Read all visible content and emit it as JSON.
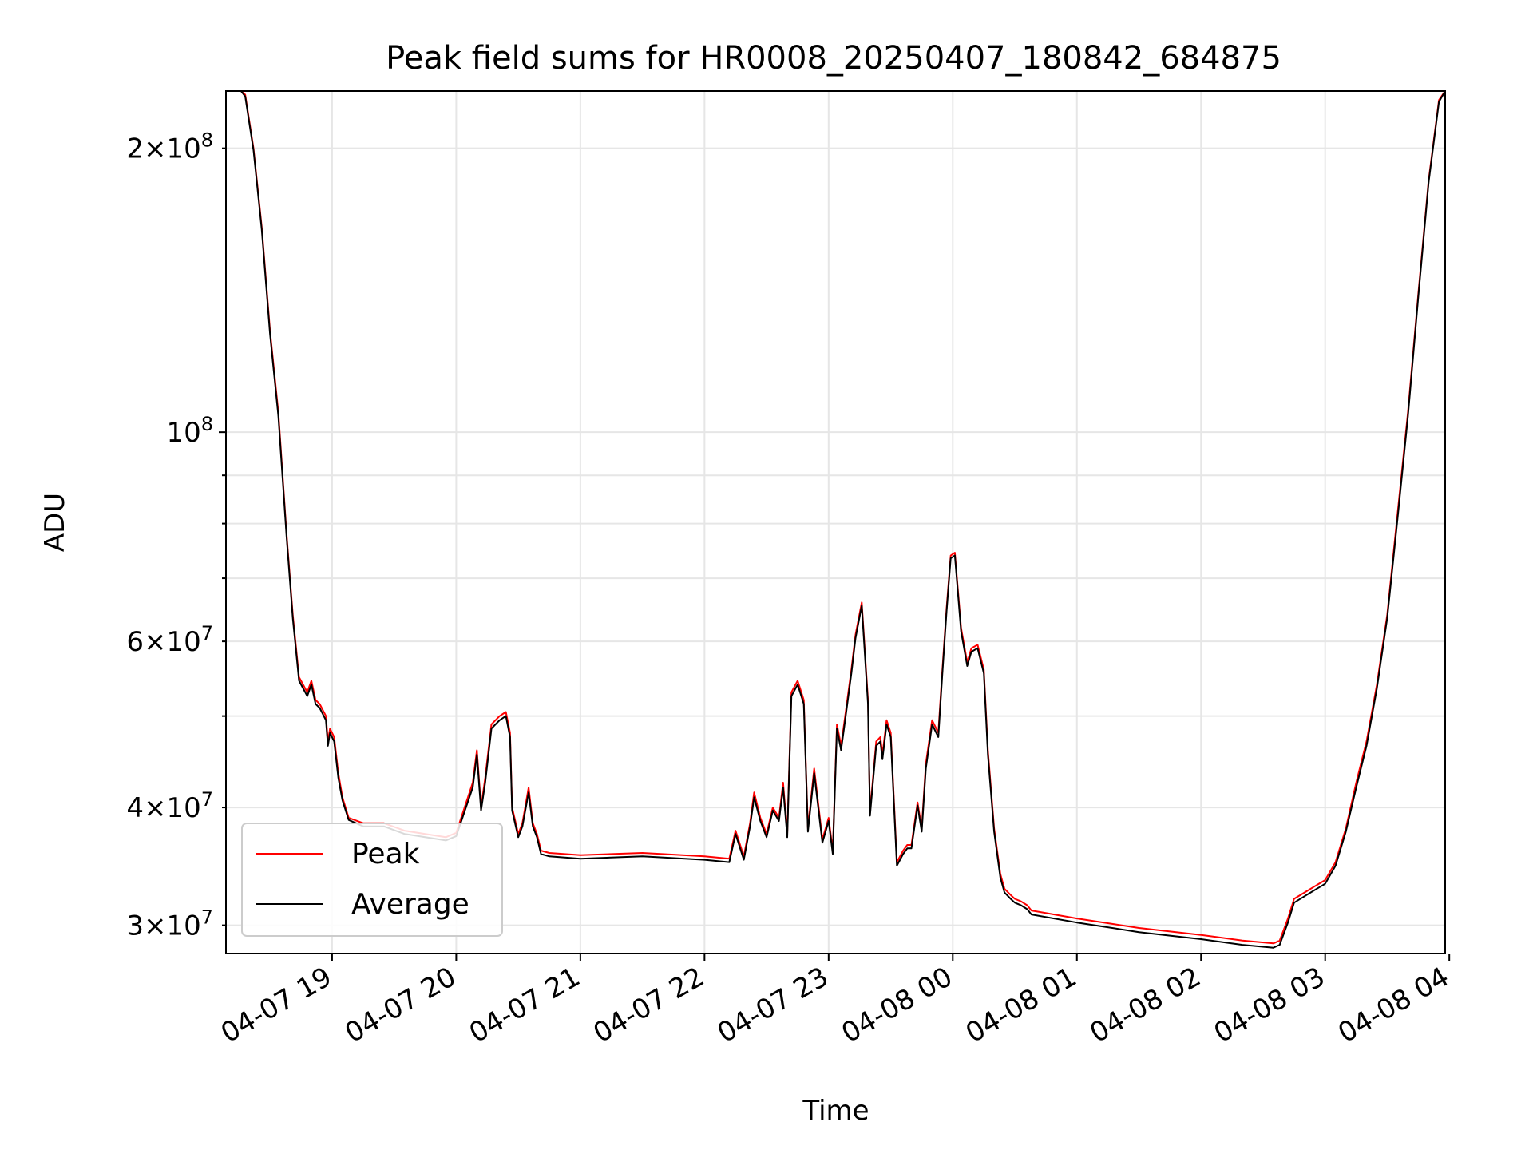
{
  "chart_data": {
    "type": "line",
    "title": "Peak field sums for HR0008_20250407_180842_684875",
    "xlabel": "Time",
    "ylabel": "ADU",
    "y_scale": "log",
    "ylim": [
      28000000,
      230000000
    ],
    "xlim": [
      "2025-04-07 18:08:42",
      "2025-04-08 03:58:00"
    ],
    "grid": true,
    "legend_position": "lower-left",
    "x_ticks": [
      {
        "time": "2025-04-07 19:00",
        "label": "04-07 19"
      },
      {
        "time": "2025-04-07 20:00",
        "label": "04-07 20"
      },
      {
        "time": "2025-04-07 21:00",
        "label": "04-07 21"
      },
      {
        "time": "2025-04-07 22:00",
        "label": "04-07 22"
      },
      {
        "time": "2025-04-07 23:00",
        "label": "04-07 23"
      },
      {
        "time": "2025-04-08 00:00",
        "label": "04-08 00"
      },
      {
        "time": "2025-04-08 01:00",
        "label": "04-08 01"
      },
      {
        "time": "2025-04-08 02:00",
        "label": "04-08 02"
      },
      {
        "time": "2025-04-08 03:00",
        "label": "04-08 03"
      },
      {
        "time": "2025-04-08 04:00",
        "label": "04-08 04"
      }
    ],
    "y_major_ticks": [
      {
        "value": 100000000,
        "base": "10",
        "exp": "8"
      }
    ],
    "y_minor_labeled_ticks": [
      {
        "value": 30000000,
        "mant": "3",
        "base": "10",
        "exp": "7"
      },
      {
        "value": 40000000,
        "mant": "4",
        "base": "10",
        "exp": "7"
      },
      {
        "value": 60000000,
        "mant": "6",
        "base": "10",
        "exp": "7"
      },
      {
        "value": 200000000,
        "mant": "2",
        "base": "10",
        "exp": "8"
      }
    ],
    "y_minor_ticks": [
      50000000,
      70000000,
      80000000,
      90000000
    ],
    "series": [
      {
        "name": "Peak",
        "color": "#ff0000",
        "x": [
          "2025-04-07 18:08:42",
          "2025-04-07 18:16",
          "2025-04-07 18:18",
          "2025-04-07 18:22",
          "2025-04-07 18:26",
          "2025-04-07 18:30",
          "2025-04-07 18:34",
          "2025-04-07 18:38",
          "2025-04-07 18:41",
          "2025-04-07 18:44",
          "2025-04-07 18:48",
          "2025-04-07 18:50",
          "2025-04-07 18:52",
          "2025-04-07 18:54",
          "2025-04-07 18:57",
          "2025-04-07 18:58",
          "2025-04-07 18:59",
          "2025-04-07 19:01",
          "2025-04-07 19:03",
          "2025-04-07 19:05",
          "2025-04-07 19:08",
          "2025-04-07 19:15",
          "2025-04-07 19:25",
          "2025-04-07 19:35",
          "2025-04-07 19:45",
          "2025-04-07 19:55",
          "2025-04-07 20:00",
          "2025-04-07 20:08",
          "2025-04-07 20:10",
          "2025-04-07 20:12",
          "2025-04-07 20:14",
          "2025-04-07 20:17",
          "2025-04-07 20:19",
          "2025-04-07 20:21",
          "2025-04-07 20:24",
          "2025-04-07 20:26",
          "2025-04-07 20:27",
          "2025-04-07 20:30",
          "2025-04-07 20:32",
          "2025-04-07 20:35",
          "2025-04-07 20:37",
          "2025-04-07 20:39",
          "2025-04-07 20:41",
          "2025-04-07 20:45",
          "2025-04-07 21:00",
          "2025-04-07 21:30",
          "2025-04-07 22:00",
          "2025-04-07 22:12",
          "2025-04-07 22:15",
          "2025-04-07 22:19",
          "2025-04-07 22:22",
          "2025-04-07 22:24",
          "2025-04-07 22:27",
          "2025-04-07 22:30",
          "2025-04-07 22:33",
          "2025-04-07 22:36",
          "2025-04-07 22:38",
          "2025-04-07 22:40",
          "2025-04-07 22:42",
          "2025-04-07 22:45",
          "2025-04-07 22:48",
          "2025-04-07 22:50",
          "2025-04-07 22:53",
          "2025-04-07 22:57",
          "2025-04-07 23:00",
          "2025-04-07 23:02",
          "2025-04-07 23:04",
          "2025-04-07 23:06",
          "2025-04-07 23:08",
          "2025-04-07 23:11",
          "2025-04-07 23:13",
          "2025-04-07 23:16",
          "2025-04-07 23:19",
          "2025-04-07 23:20",
          "2025-04-07 23:23",
          "2025-04-07 23:25",
          "2025-04-07 23:26",
          "2025-04-07 23:28",
          "2025-04-07 23:30",
          "2025-04-07 23:33",
          "2025-04-07 23:36",
          "2025-04-07 23:38",
          "2025-04-07 23:40",
          "2025-04-07 23:43",
          "2025-04-07 23:45",
          "2025-04-07 23:47",
          "2025-04-07 23:50",
          "2025-04-07 23:53",
          "2025-04-07 23:55",
          "2025-04-07 23:57",
          "2025-04-07 23:59",
          "2025-04-08 00:01",
          "2025-04-08 00:04",
          "2025-04-08 00:07",
          "2025-04-08 00:09",
          "2025-04-08 00:12",
          "2025-04-08 00:15",
          "2025-04-08 00:17",
          "2025-04-08 00:20",
          "2025-04-08 00:23",
          "2025-04-08 00:25",
          "2025-04-08 00:28",
          "2025-04-08 00:30",
          "2025-04-08 00:33",
          "2025-04-08 00:36",
          "2025-04-08 00:38",
          "2025-04-08 01:00",
          "2025-04-08 01:30",
          "2025-04-08 02:00",
          "2025-04-08 02:20",
          "2025-04-08 02:35",
          "2025-04-08 02:38",
          "2025-04-08 02:42",
          "2025-04-08 02:45",
          "2025-04-08 02:50",
          "2025-04-08 02:55",
          "2025-04-08 03:00",
          "2025-04-08 03:05",
          "2025-04-08 03:10",
          "2025-04-08 03:15",
          "2025-04-08 03:20",
          "2025-04-08 03:25",
          "2025-04-08 03:30",
          "2025-04-08 03:35",
          "2025-04-08 03:40",
          "2025-04-08 03:45",
          "2025-04-08 03:50",
          "2025-04-08 03:55",
          "2025-04-08 03:58"
        ],
        "values": [
          230000000,
          230000000,
          228000000,
          200000000,
          165000000,
          128000000,
          105000000,
          78000000,
          64000000,
          55000000,
          53000000,
          54500000,
          52000000,
          51500000,
          50000000,
          47000000,
          48500000,
          47500000,
          43500000,
          41000000,
          39000000,
          38500000,
          38500000,
          37800000,
          37500000,
          37200000,
          37600000,
          42500000,
          46000000,
          40000000,
          43000000,
          49000000,
          49500000,
          50000000,
          50500000,
          48000000,
          40000000,
          37500000,
          38500000,
          42000000,
          38500000,
          37500000,
          36000000,
          35800000,
          35600000,
          35800000,
          35500000,
          35300000,
          37800000,
          35500000,
          38500000,
          41500000,
          39000000,
          37500000,
          40000000,
          39000000,
          42500000,
          37500000,
          53000000,
          54500000,
          52000000,
          38000000,
          44000000,
          37000000,
          39000000,
          36000000,
          49000000,
          46500000,
          50000000,
          56000000,
          61000000,
          66000000,
          52000000,
          39500000,
          47000000,
          47500000,
          45500000,
          49500000,
          48000000,
          35000000,
          36000000,
          36500000,
          36500000,
          40500000,
          38000000,
          44500000,
          49500000,
          48000000,
          56000000,
          65000000,
          74000000,
          74500000,
          62000000,
          57000000,
          59000000,
          59500000,
          56000000,
          46000000,
          38000000,
          34000000,
          32800000,
          32300000,
          32000000,
          31800000,
          31500000,
          31100000,
          30500000,
          29800000,
          29300000,
          28900000,
          28700000,
          28900000,
          30500000,
          32000000,
          32500000,
          33000000,
          33500000,
          35000000,
          38000000,
          42500000,
          47000000,
          54000000,
          64000000,
          82000000,
          105000000,
          140000000,
          185000000,
          225000000,
          230000000
        ]
      },
      {
        "name": "Average",
        "color": "#000000",
        "x": [
          "2025-04-07 18:08:42",
          "2025-04-07 18:16",
          "2025-04-07 18:18",
          "2025-04-07 18:22",
          "2025-04-07 18:26",
          "2025-04-07 18:30",
          "2025-04-07 18:34",
          "2025-04-07 18:38",
          "2025-04-07 18:41",
          "2025-04-07 18:44",
          "2025-04-07 18:48",
          "2025-04-07 18:50",
          "2025-04-07 18:52",
          "2025-04-07 18:54",
          "2025-04-07 18:57",
          "2025-04-07 18:58",
          "2025-04-07 18:59",
          "2025-04-07 19:01",
          "2025-04-07 19:03",
          "2025-04-07 19:05",
          "2025-04-07 19:08",
          "2025-04-07 19:15",
          "2025-04-07 19:25",
          "2025-04-07 19:35",
          "2025-04-07 19:45",
          "2025-04-07 19:55",
          "2025-04-07 20:00",
          "2025-04-07 20:08",
          "2025-04-07 20:10",
          "2025-04-07 20:12",
          "2025-04-07 20:14",
          "2025-04-07 20:17",
          "2025-04-07 20:19",
          "2025-04-07 20:21",
          "2025-04-07 20:24",
          "2025-04-07 20:26",
          "2025-04-07 20:27",
          "2025-04-07 20:30",
          "2025-04-07 20:32",
          "2025-04-07 20:35",
          "2025-04-07 20:37",
          "2025-04-07 20:39",
          "2025-04-07 20:41",
          "2025-04-07 20:45",
          "2025-04-07 21:00",
          "2025-04-07 21:30",
          "2025-04-07 22:00",
          "2025-04-07 22:12",
          "2025-04-07 22:15",
          "2025-04-07 22:19",
          "2025-04-07 22:22",
          "2025-04-07 22:24",
          "2025-04-07 22:27",
          "2025-04-07 22:30",
          "2025-04-07 22:33",
          "2025-04-07 22:36",
          "2025-04-07 22:38",
          "2025-04-07 22:40",
          "2025-04-07 22:42",
          "2025-04-07 22:45",
          "2025-04-07 22:48",
          "2025-04-07 22:50",
          "2025-04-07 22:53",
          "2025-04-07 22:57",
          "2025-04-07 23:00",
          "2025-04-07 23:02",
          "2025-04-07 23:04",
          "2025-04-07 23:06",
          "2025-04-07 23:08",
          "2025-04-07 23:11",
          "2025-04-07 23:13",
          "2025-04-07 23:16",
          "2025-04-07 23:19",
          "2025-04-07 23:20",
          "2025-04-07 23:23",
          "2025-04-07 23:25",
          "2025-04-07 23:26",
          "2025-04-07 23:28",
          "2025-04-07 23:30",
          "2025-04-07 23:33",
          "2025-04-07 23:36",
          "2025-04-07 23:38",
          "2025-04-07 23:40",
          "2025-04-07 23:43",
          "2025-04-07 23:45",
          "2025-04-07 23:47",
          "2025-04-07 23:50",
          "2025-04-07 23:53",
          "2025-04-07 23:55",
          "2025-04-07 23:57",
          "2025-04-07 23:59",
          "2025-04-08 00:01",
          "2025-04-08 00:04",
          "2025-04-08 00:07",
          "2025-04-08 00:09",
          "2025-04-08 00:12",
          "2025-04-08 00:15",
          "2025-04-08 00:17",
          "2025-04-08 00:20",
          "2025-04-08 00:23",
          "2025-04-08 00:25",
          "2025-04-08 00:28",
          "2025-04-08 00:30",
          "2025-04-08 00:33",
          "2025-04-08 00:36",
          "2025-04-08 00:38",
          "2025-04-08 01:00",
          "2025-04-08 01:30",
          "2025-04-08 02:00",
          "2025-04-08 02:20",
          "2025-04-08 02:35",
          "2025-04-08 02:38",
          "2025-04-08 02:42",
          "2025-04-08 02:45",
          "2025-04-08 02:50",
          "2025-04-08 02:55",
          "2025-04-08 03:00",
          "2025-04-08 03:05",
          "2025-04-08 03:10",
          "2025-04-08 03:15",
          "2025-04-08 03:20",
          "2025-04-08 03:25",
          "2025-04-08 03:30",
          "2025-04-08 03:35",
          "2025-04-08 03:40",
          "2025-04-08 03:45",
          "2025-04-08 03:50",
          "2025-04-08 03:55",
          "2025-04-08 03:58"
        ],
        "values": [
          230000000,
          230000000,
          227000000,
          199000000,
          164000000,
          127000000,
          104000000,
          77500000,
          63500000,
          54500000,
          52500000,
          54000000,
          51500000,
          51000000,
          49500000,
          46500000,
          48000000,
          47000000,
          43000000,
          40700000,
          38800000,
          38200000,
          38200000,
          37500000,
          37200000,
          36900000,
          37300000,
          42000000,
          45500000,
          39700000,
          42500000,
          48500000,
          49000000,
          49500000,
          50000000,
          47500000,
          39700000,
          37200000,
          38200000,
          41500000,
          38200000,
          37200000,
          35700000,
          35500000,
          35300000,
          35500000,
          35200000,
          35000000,
          37500000,
          35200000,
          38200000,
          41000000,
          38700000,
          37200000,
          39700000,
          38700000,
          42000000,
          37200000,
          52500000,
          54000000,
          51500000,
          37700000,
          43500000,
          36700000,
          38700000,
          35700000,
          48500000,
          46000000,
          49500000,
          55500000,
          60500000,
          65500000,
          51500000,
          39200000,
          46500000,
          47000000,
          45000000,
          49000000,
          47500000,
          34700000,
          35700000,
          36200000,
          36200000,
          40200000,
          37700000,
          44000000,
          49000000,
          47500000,
          55500000,
          64500000,
          73500000,
          74000000,
          61500000,
          56500000,
          58500000,
          59000000,
          55500000,
          45500000,
          37700000,
          33700000,
          32500000,
          32000000,
          31700000,
          31500000,
          31200000,
          30800000,
          30200000,
          29500000,
          29000000,
          28600000,
          28400000,
          28600000,
          30200000,
          31700000,
          32200000,
          32700000,
          33200000,
          34700000,
          37700000,
          42000000,
          46500000,
          53500000,
          63500000,
          81000000,
          104000000,
          139000000,
          184000000,
          224000000,
          230000000
        ]
      }
    ]
  }
}
